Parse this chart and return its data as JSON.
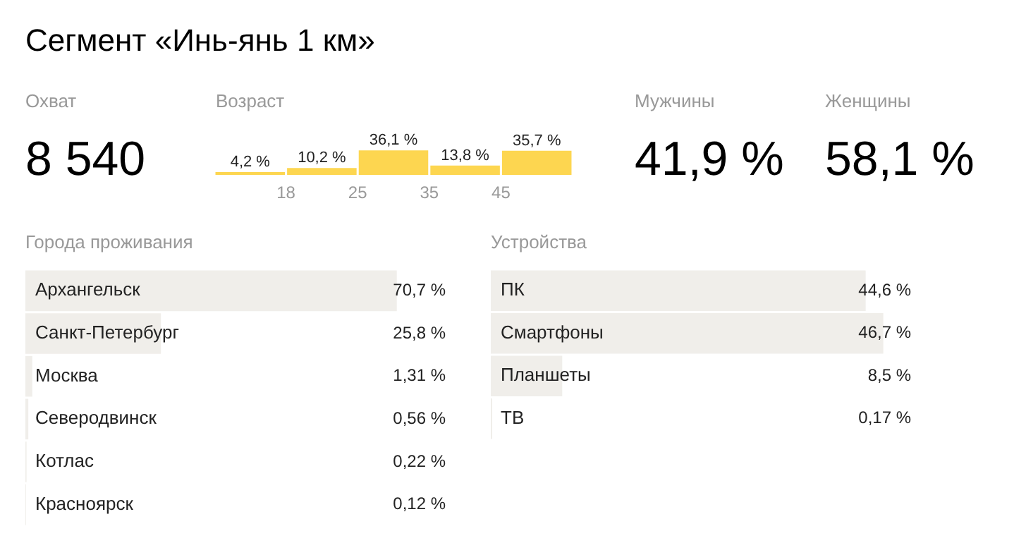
{
  "chart_data": [
    {
      "type": "other",
      "title": "Сегмент «Инь-янь 1 км»",
      "annotations": [
        "Охват",
        "8 540",
        "Мужчины",
        "41,9 %",
        "Женщины",
        "58,1 %"
      ]
    },
    {
      "type": "bar",
      "title": "Возраст",
      "categories": [
        null,
        null,
        null,
        null,
        null
      ],
      "values": [
        4.2,
        10.2,
        36.1,
        13.8,
        35.7
      ],
      "color": "#fdd650",
      "value_labels": [
        "4,2 %",
        "10,2 %",
        "36,1 %",
        "13,8 %",
        "35,7 %"
      ],
      "annotations": [
        "18",
        "25",
        "35",
        "45"
      ]
    },
    {
      "type": "bar",
      "orientation": "horizontal",
      "title": "Города проживания",
      "categories": [
        "Архангельск",
        "Санкт-Петербург",
        "Москва",
        "Северодвинск",
        "Котлас",
        "Красноярск"
      ],
      "values": [
        70.7,
        25.8,
        1.31,
        0.56,
        0.22,
        0.12
      ],
      "color": "#f0eeea",
      "tick_labels": "y",
      "value_labels": [
        "70,7 %",
        "25,8 %",
        "1,31 %",
        "0,56 %",
        "0,22 %",
        "0,12 %"
      ]
    },
    {
      "type": "bar",
      "orientation": "horizontal",
      "title": "Устройства",
      "categories": [
        "ПК",
        "Смартфоны",
        "Планшеты",
        "ТВ"
      ],
      "values": [
        44.6,
        46.7,
        8.5,
        0.17
      ],
      "color": "#f0eeea",
      "tick_labels": "y",
      "value_labels": [
        "44,6 %",
        "46,7 %",
        "8,5 %",
        "0,17 %"
      ]
    }
  ]
}
